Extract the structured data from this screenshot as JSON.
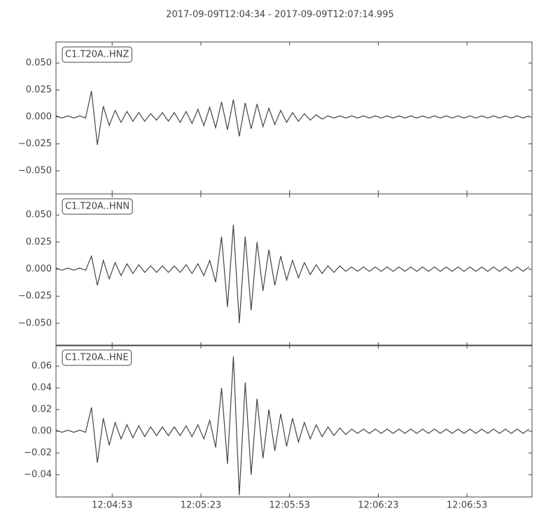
{
  "title": "2017-09-09T12:04:34  -  2017-09-09T12:07:14.995",
  "chart_data": [
    {
      "type": "line",
      "label": "C1.T20A..HNZ",
      "color": "#444444",
      "xlim": [
        "12:04:34",
        "12:07:14.995"
      ],
      "ylim": [
        -0.0714,
        0.0695
      ],
      "yticks": [
        {
          "value": 0.05,
          "label": "0.050"
        },
        {
          "value": 0.025,
          "label": "0.025"
        },
        {
          "value": 0,
          "label": "0.000"
        },
        {
          "value": -0.025,
          "label": "−0.025"
        },
        {
          "value": -0.05,
          "label": "−0.050"
        }
      ],
      "x": [
        "12:04:34",
        "12:04:36",
        "12:04:38",
        "12:04:40",
        "12:04:42",
        "12:04:44",
        "12:04:46",
        "12:04:48",
        "12:04:50",
        "12:04:52",
        "12:04:54",
        "12:04:56",
        "12:04:58",
        "12:05:00",
        "12:05:02",
        "12:05:04",
        "12:05:06",
        "12:05:08",
        "12:05:10",
        "12:05:12",
        "12:05:14",
        "12:05:16",
        "12:05:18",
        "12:05:20",
        "12:05:22",
        "12:05:24",
        "12:05:26",
        "12:05:28",
        "12:05:30",
        "12:05:32",
        "12:05:34",
        "12:05:36",
        "12:05:38",
        "12:05:40",
        "12:05:42",
        "12:05:44",
        "12:05:46",
        "12:05:48",
        "12:05:50",
        "12:05:52",
        "12:05:54",
        "12:05:56",
        "12:05:58",
        "12:06:00",
        "12:06:02",
        "12:06:04",
        "12:06:06",
        "12:06:08",
        "12:06:10",
        "12:06:12",
        "12:06:14",
        "12:06:16",
        "12:06:18",
        "12:06:20",
        "12:06:22",
        "12:06:24",
        "12:06:26",
        "12:06:28",
        "12:06:30",
        "12:06:32",
        "12:06:34",
        "12:06:36",
        "12:06:38",
        "12:06:40",
        "12:06:42",
        "12:06:44",
        "12:06:46",
        "12:06:48",
        "12:06:50",
        "12:06:52",
        "12:06:54",
        "12:06:56",
        "12:06:58",
        "12:07:00",
        "12:07:02",
        "12:07:04",
        "12:07:06",
        "12:07:08",
        "12:07:10",
        "12:07:12",
        "12:07:14"
      ],
      "values": [
        0.001,
        -0.001,
        0.001,
        -0.001,
        0.001,
        -0.001,
        0.024,
        -0.026,
        0.01,
        -0.008,
        0.006,
        -0.005,
        0.005,
        -0.004,
        0.004,
        -0.004,
        0.003,
        -0.003,
        0.004,
        -0.004,
        0.004,
        -0.005,
        0.005,
        -0.006,
        0.007,
        -0.008,
        0.009,
        -0.01,
        0.014,
        -0.012,
        0.016,
        -0.018,
        0.013,
        -0.011,
        0.012,
        -0.009,
        0.008,
        -0.007,
        0.006,
        -0.005,
        0.004,
        -0.004,
        0.003,
        -0.003,
        0.002,
        -0.002,
        0.001,
        -0.001,
        0.001,
        -0.001,
        0.001,
        -0.001,
        0.001,
        -0.001,
        0.001,
        -0.001,
        0.001,
        -0.001,
        0.001,
        -0.001,
        0.001,
        -0.001,
        0.001,
        -0.001,
        0.001,
        -0.001,
        0.001,
        -0.001,
        0.001,
        -0.001,
        0.001,
        -0.001,
        0.001,
        -0.001,
        0.001,
        -0.001,
        0.001,
        -0.001,
        0.001,
        -0.001,
        0.001
      ]
    },
    {
      "type": "line",
      "label": "C1.T20A..HNN",
      "color": "#444444",
      "xlim": [
        "12:04:34",
        "12:07:14.995"
      ],
      "ylim": [
        -0.0708,
        0.0695
      ],
      "yticks": [
        {
          "value": 0.05,
          "label": "0.050"
        },
        {
          "value": 0.025,
          "label": "0.025"
        },
        {
          "value": 0,
          "label": "0.000"
        },
        {
          "value": -0.025,
          "label": "−0.025"
        },
        {
          "value": -0.05,
          "label": "−0.050"
        }
      ],
      "x": [
        "12:04:34",
        "12:04:36",
        "12:04:38",
        "12:04:40",
        "12:04:42",
        "12:04:44",
        "12:04:46",
        "12:04:48",
        "12:04:50",
        "12:04:52",
        "12:04:54",
        "12:04:56",
        "12:04:58",
        "12:05:00",
        "12:05:02",
        "12:05:04",
        "12:05:06",
        "12:05:08",
        "12:05:10",
        "12:05:12",
        "12:05:14",
        "12:05:16",
        "12:05:18",
        "12:05:20",
        "12:05:22",
        "12:05:24",
        "12:05:26",
        "12:05:28",
        "12:05:30",
        "12:05:32",
        "12:05:34",
        "12:05:36",
        "12:05:38",
        "12:05:40",
        "12:05:42",
        "12:05:44",
        "12:05:46",
        "12:05:48",
        "12:05:50",
        "12:05:52",
        "12:05:54",
        "12:05:56",
        "12:05:58",
        "12:06:00",
        "12:06:02",
        "12:06:04",
        "12:06:06",
        "12:06:08",
        "12:06:10",
        "12:06:12",
        "12:06:14",
        "12:06:16",
        "12:06:18",
        "12:06:20",
        "12:06:22",
        "12:06:24",
        "12:06:26",
        "12:06:28",
        "12:06:30",
        "12:06:32",
        "12:06:34",
        "12:06:36",
        "12:06:38",
        "12:06:40",
        "12:06:42",
        "12:06:44",
        "12:06:46",
        "12:06:48",
        "12:06:50",
        "12:06:52",
        "12:06:54",
        "12:06:56",
        "12:06:58",
        "12:07:00",
        "12:07:02",
        "12:07:04",
        "12:07:06",
        "12:07:08",
        "12:07:10",
        "12:07:12",
        "12:07:14"
      ],
      "values": [
        0.001,
        -0.001,
        0.001,
        -0.001,
        0.001,
        -0.001,
        0.012,
        -0.015,
        0.008,
        -0.009,
        0.006,
        -0.006,
        0.005,
        -0.004,
        0.004,
        -0.003,
        0.003,
        -0.003,
        0.003,
        -0.003,
        0.003,
        -0.003,
        0.004,
        -0.004,
        0.005,
        -0.006,
        0.008,
        -0.012,
        0.03,
        -0.035,
        0.041,
        -0.05,
        0.03,
        -0.038,
        0.025,
        -0.02,
        0.018,
        -0.015,
        0.012,
        -0.01,
        0.008,
        -0.008,
        0.006,
        -0.005,
        0.004,
        -0.004,
        0.003,
        -0.003,
        0.003,
        -0.002,
        0.002,
        -0.002,
        0.002,
        -0.002,
        0.002,
        -0.002,
        0.002,
        -0.002,
        0.002,
        -0.002,
        0.002,
        -0.002,
        0.002,
        -0.002,
        0.002,
        -0.002,
        0.002,
        -0.002,
        0.002,
        -0.002,
        0.002,
        -0.002,
        0.002,
        -0.002,
        0.002,
        -0.002,
        0.002,
        -0.002,
        0.002,
        -0.002,
        0.002
      ]
    },
    {
      "type": "line",
      "label": "C1.T20A..HNE",
      "color": "#444444",
      "xlim": [
        "12:04:34",
        "12:07:14.995"
      ],
      "ylim": [
        -0.0606,
        0.0794
      ],
      "yticks": [
        {
          "value": 0.06,
          "label": "0.06"
        },
        {
          "value": 0.04,
          "label": "0.04"
        },
        {
          "value": 0.02,
          "label": "0.02"
        },
        {
          "value": 0,
          "label": "0.00"
        },
        {
          "value": -0.02,
          "label": "−0.02"
        },
        {
          "value": -0.04,
          "label": "−0.04"
        }
      ],
      "xticks": [
        "12:04:53",
        "12:05:23",
        "12:05:53",
        "12:06:23",
        "12:06:53"
      ],
      "x": [
        "12:04:34",
        "12:04:36",
        "12:04:38",
        "12:04:40",
        "12:04:42",
        "12:04:44",
        "12:04:46",
        "12:04:48",
        "12:04:50",
        "12:04:52",
        "12:04:54",
        "12:04:56",
        "12:04:58",
        "12:05:00",
        "12:05:02",
        "12:05:04",
        "12:05:06",
        "12:05:08",
        "12:05:10",
        "12:05:12",
        "12:05:14",
        "12:05:16",
        "12:05:18",
        "12:05:20",
        "12:05:22",
        "12:05:24",
        "12:05:26",
        "12:05:28",
        "12:05:30",
        "12:05:32",
        "12:05:34",
        "12:05:36",
        "12:05:38",
        "12:05:40",
        "12:05:42",
        "12:05:44",
        "12:05:46",
        "12:05:48",
        "12:05:50",
        "12:05:52",
        "12:05:54",
        "12:05:56",
        "12:05:58",
        "12:06:00",
        "12:06:02",
        "12:06:04",
        "12:06:06",
        "12:06:08",
        "12:06:10",
        "12:06:12",
        "12:06:14",
        "12:06:16",
        "12:06:18",
        "12:06:20",
        "12:06:22",
        "12:06:24",
        "12:06:26",
        "12:06:28",
        "12:06:30",
        "12:06:32",
        "12:06:34",
        "12:06:36",
        "12:06:38",
        "12:06:40",
        "12:06:42",
        "12:06:44",
        "12:06:46",
        "12:06:48",
        "12:06:50",
        "12:06:52",
        "12:06:54",
        "12:06:56",
        "12:06:58",
        "12:07:00",
        "12:07:02",
        "12:07:04",
        "12:07:06",
        "12:07:08",
        "12:07:10",
        "12:07:12",
        "12:07:14"
      ],
      "values": [
        0.001,
        -0.001,
        0.001,
        -0.001,
        0.001,
        -0.001,
        0.022,
        -0.029,
        0.012,
        -0.013,
        0.008,
        -0.007,
        0.006,
        -0.006,
        0.005,
        -0.005,
        0.004,
        -0.004,
        0.004,
        -0.004,
        0.004,
        -0.004,
        0.005,
        -0.005,
        0.006,
        -0.007,
        0.01,
        -0.015,
        0.04,
        -0.03,
        0.069,
        -0.059,
        0.045,
        -0.04,
        0.03,
        -0.025,
        0.02,
        -0.018,
        0.016,
        -0.014,
        0.012,
        -0.01,
        0.008,
        -0.007,
        0.006,
        -0.005,
        0.004,
        -0.004,
        0.003,
        -0.003,
        0.002,
        -0.002,
        0.002,
        -0.002,
        0.002,
        -0.002,
        0.002,
        -0.002,
        0.002,
        -0.002,
        0.002,
        -0.002,
        0.002,
        -0.002,
        0.002,
        -0.002,
        0.002,
        -0.002,
        0.002,
        -0.002,
        0.002,
        -0.002,
        0.002,
        -0.002,
        0.002,
        -0.002,
        0.002,
        -0.002,
        0.002,
        -0.002,
        0.002
      ]
    }
  ]
}
